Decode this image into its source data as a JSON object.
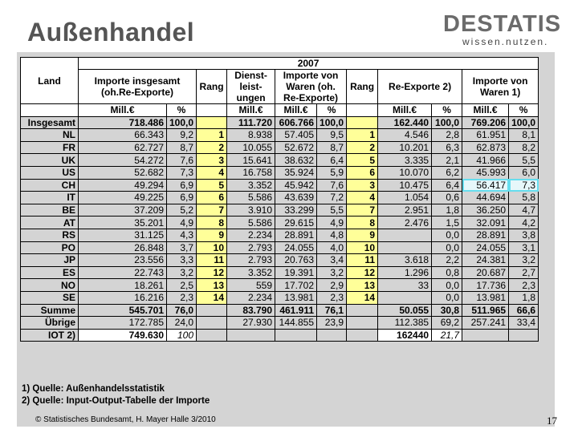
{
  "title": "Außenhandel",
  "logo": {
    "main": "DESTATIS",
    "sub": "wissen.nutzen."
  },
  "table": {
    "year": "2007",
    "headers": {
      "land": "Land",
      "importe": "Importe insgesamt (oh.Re-Exporte)",
      "rang1": "Rang",
      "dienst": "Dienst-leist-ungen",
      "importe_waren": "Importe von Waren (oh. Re-Exporte)",
      "rang2": "Rang",
      "reexporte": "Re-Exporte 2)",
      "importe_waren1": "Importe von Waren 1)"
    },
    "units": [
      "Mill.€",
      "%",
      "",
      "Mill.€",
      "Mill.€",
      "%",
      "",
      "Mill.€",
      "%",
      "Mill.€",
      "%"
    ],
    "total": [
      "Insgesamt",
      "718.486",
      "100,0",
      "",
      "111.720",
      "606.766",
      "100,0",
      "",
      "162.440",
      "100,0",
      "769.206",
      "100,0"
    ],
    "rows": [
      [
        "NL",
        "66.343",
        "9,2",
        "1",
        "8.938",
        "57.405",
        "9,5",
        "1",
        "4.546",
        "2,8",
        "61.951",
        "8,1"
      ],
      [
        "FR",
        "62.727",
        "8,7",
        "2",
        "10.055",
        "52.672",
        "8,7",
        "2",
        "10.201",
        "6,3",
        "62.873",
        "8,2"
      ],
      [
        "UK",
        "54.272",
        "7,6",
        "3",
        "15.641",
        "38.632",
        "6,4",
        "5",
        "3.335",
        "2,1",
        "41.966",
        "5,5"
      ],
      [
        "US",
        "52.682",
        "7,3",
        "4",
        "16.758",
        "35.924",
        "5,9",
        "6",
        "10.070",
        "6,2",
        "45.993",
        "6,0"
      ],
      [
        "CH",
        "49.294",
        "6,9",
        "5",
        "3.352",
        "45.942",
        "7,6",
        "3",
        "10.475",
        "6,4",
        "56.417",
        "7,3"
      ],
      [
        "IT",
        "49.225",
        "6,9",
        "6",
        "5.586",
        "43.639",
        "7,2",
        "4",
        "1.054",
        "0,6",
        "44.694",
        "5,8"
      ],
      [
        "BE",
        "37.209",
        "5,2",
        "7",
        "3.910",
        "33.299",
        "5,5",
        "7",
        "2.951",
        "1,8",
        "36.250",
        "4,7"
      ],
      [
        "AT",
        "35.201",
        "4,9",
        "8",
        "5.586",
        "29.615",
        "4,9",
        "8",
        "2.476",
        "1,5",
        "32.091",
        "4,2"
      ],
      [
        "RS",
        "31.125",
        "4,3",
        "9",
        "2.234",
        "28.891",
        "4,8",
        "9",
        "",
        "0,0",
        "28.891",
        "3,8"
      ],
      [
        "PO",
        "26.848",
        "3,7",
        "10",
        "2.793",
        "24.055",
        "4,0",
        "10",
        "",
        "0,0",
        "24.055",
        "3,1"
      ],
      [
        "JP",
        "23.556",
        "3,3",
        "11",
        "2.793",
        "20.763",
        "3,4",
        "11",
        "3.618",
        "2,2",
        "24.381",
        "3,2"
      ],
      [
        "ES",
        "22.743",
        "3,2",
        "12",
        "3.352",
        "19.391",
        "3,2",
        "12",
        "1.296",
        "0,8",
        "20.687",
        "2,7"
      ],
      [
        "NO",
        "18.261",
        "2,5",
        "13",
        "559",
        "17.702",
        "2,9",
        "13",
        "33",
        "0,0",
        "17.736",
        "2,3"
      ],
      [
        "SE",
        "16.216",
        "2,3",
        "14",
        "2.234",
        "13.981",
        "2,3",
        "14",
        "",
        "0,0",
        "13.981",
        "1,8"
      ]
    ],
    "summe": [
      "Summe",
      "545.701",
      "76,0",
      "",
      "83.790",
      "461.911",
      "76,1",
      "",
      "50.055",
      "30,8",
      "511.965",
      "66,6"
    ],
    "uebrige": [
      "Übrige",
      "172.785",
      "24,0",
      "",
      "27.930",
      "144.855",
      "23,9",
      "",
      "112.385",
      "69,2",
      "257.241",
      "33,4"
    ],
    "iot": [
      "IOT 2)",
      "749.630",
      "100",
      "",
      "",
      "",
      "",
      "",
      "162440",
      "21,7",
      "",
      ""
    ]
  },
  "footnotes": [
    "1) Quelle: Außenhandelsstatistik",
    "2) Quelle: Input-Output-Tabelle der Importe"
  ],
  "copyright": "© Statistisches Bundesamt, H. Mayer Halle 3/2010",
  "page_number": "17"
}
